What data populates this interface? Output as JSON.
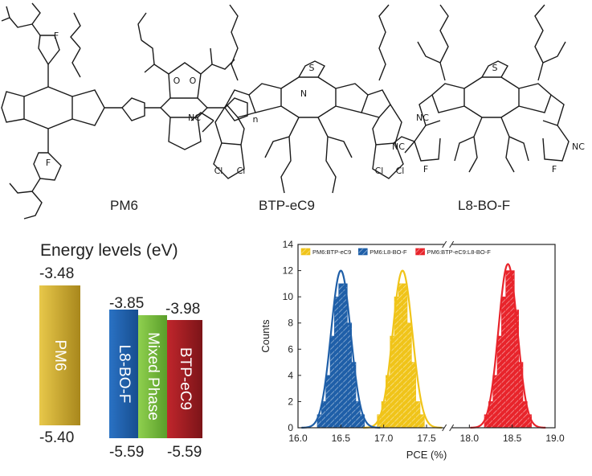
{
  "molecules": {
    "pm6": "PM6",
    "btp": "BTP-eC9",
    "l8": "L8-BO-F"
  },
  "atoms": {
    "F": "F",
    "O": "O",
    "S": "S",
    "N": "N",
    "CN": "NC",
    "Cl": "Cl",
    "n": "n"
  },
  "energy": {
    "title": "Energy levels (eV)",
    "bars": [
      {
        "label": "PM6",
        "lumo": "-3.48",
        "homo": "-5.40",
        "color": "#c9a227"
      },
      {
        "label": "L8-BO-F",
        "lumo": "-3.85",
        "homo": "-5.59",
        "color": "#1f5fa8"
      },
      {
        "label": "Mixed Phase",
        "lumo": "",
        "homo": "",
        "color": "#6fb43a"
      },
      {
        "label": "BTP-eC9",
        "lumo": "-3.98",
        "homo": "-5.59",
        "color": "#a01c22"
      }
    ]
  },
  "chart_data": {
    "type": "bar",
    "xlabel": "PCE (%)",
    "ylabel": "Counts",
    "ylim": [
      0,
      14
    ],
    "yticks": [
      "0",
      "2",
      "4",
      "6",
      "8",
      "10",
      "12",
      "14"
    ],
    "xticks": [
      "16.0",
      "16.5",
      "17.0",
      "17.5",
      "18.0",
      "18.5",
      "19.0"
    ],
    "axis_break_between": [
      "17.5",
      "18.0"
    ],
    "legend_placement": "top",
    "series": [
      {
        "name": "PM6:BTP-eC9",
        "color": "#f0c419",
        "mean": 17.22,
        "sd": 0.115,
        "peak": 12.0,
        "bins": [
          16.95,
          17.0,
          17.05,
          17.1,
          17.15,
          17.2,
          17.25,
          17.3,
          17.35,
          17.4,
          17.45
        ],
        "values": [
          1,
          2,
          4,
          7,
          10,
          11,
          11,
          8,
          5,
          2,
          1
        ]
      },
      {
        "name": "PM6:L8-BO-F",
        "color": "#1f5fa8",
        "mean": 16.5,
        "sd": 0.115,
        "peak": 12.0,
        "bins": [
          16.25,
          16.3,
          16.35,
          16.4,
          16.45,
          16.5,
          16.55,
          16.6,
          16.65,
          16.7,
          16.75
        ],
        "values": [
          1,
          2,
          4,
          7,
          10,
          11,
          11,
          8,
          5,
          2,
          1
        ]
      },
      {
        "name": "PM6:BTP-eC9:L8-BO-F",
        "color": "#e8242b",
        "mean": 18.45,
        "sd": 0.11,
        "peak": 12.5,
        "bins": [
          18.2,
          18.25,
          18.3,
          18.35,
          18.4,
          18.45,
          18.5,
          18.55,
          18.6,
          18.65,
          18.7
        ],
        "values": [
          1,
          2,
          4,
          7,
          10,
          12,
          12,
          9,
          5,
          2,
          1
        ]
      }
    ]
  }
}
